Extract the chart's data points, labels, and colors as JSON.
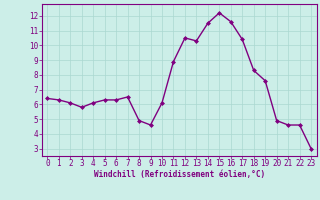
{
  "x": [
    0,
    1,
    2,
    3,
    4,
    5,
    6,
    7,
    8,
    9,
    10,
    11,
    12,
    13,
    14,
    15,
    16,
    17,
    18,
    19,
    20,
    21,
    22,
    23
  ],
  "y": [
    6.4,
    6.3,
    6.1,
    5.8,
    6.1,
    6.3,
    6.3,
    6.5,
    4.9,
    4.6,
    6.1,
    8.9,
    10.5,
    10.3,
    11.5,
    12.2,
    11.6,
    10.4,
    8.3,
    7.6,
    4.9,
    4.6,
    4.6,
    3.0
  ],
  "line_color": "#800080",
  "marker": "D",
  "marker_size": 2,
  "line_width": 1.0,
  "bg_color": "#cceee8",
  "grid_color": "#aad8d0",
  "xlabel": "Windchill (Refroidissement éolien,°C)",
  "xlabel_color": "#800080",
  "tick_color": "#800080",
  "spine_color": "#800080",
  "ylim": [
    2.5,
    12.8
  ],
  "xlim": [
    -0.5,
    23.5
  ],
  "yticks": [
    3,
    4,
    5,
    6,
    7,
    8,
    9,
    10,
    11,
    12
  ],
  "xticks": [
    0,
    1,
    2,
    3,
    4,
    5,
    6,
    7,
    8,
    9,
    10,
    11,
    12,
    13,
    14,
    15,
    16,
    17,
    18,
    19,
    20,
    21,
    22,
    23
  ],
  "tick_fontsize": 5.5,
  "xlabel_fontsize": 5.5
}
